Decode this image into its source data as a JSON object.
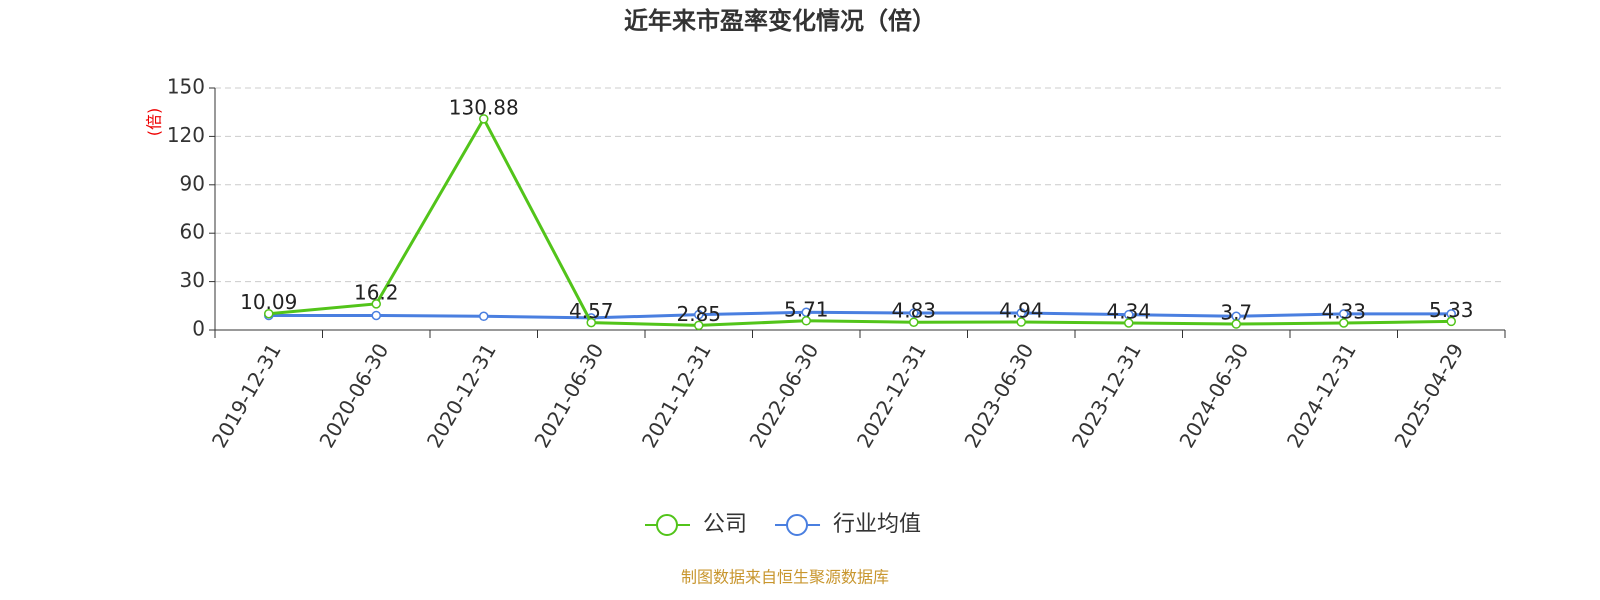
{
  "chart_data": {
    "type": "line",
    "title": "近年来市盈率变化情况（倍）",
    "y_label": "(倍)",
    "categories": [
      "2019-12-31",
      "2020-06-30",
      "2020-12-31",
      "2021-06-30",
      "2021-12-31",
      "2022-06-30",
      "2022-12-31",
      "2023-06-30",
      "2023-12-31",
      "2024-06-30",
      "2024-12-31",
      "2025-04-29"
    ],
    "series": [
      {
        "name": "公司",
        "color": "#52c41a",
        "values": [
          10.09,
          16.2,
          130.88,
          4.57,
          2.85,
          5.71,
          4.83,
          4.94,
          4.34,
          3.7,
          4.33,
          5.33
        ],
        "show_labels": true
      },
      {
        "name": "行业均值",
        "color": "#4a7fe0",
        "values": [
          9,
          9,
          8.5,
          7.5,
          9.5,
          11,
          10.5,
          10.5,
          9.5,
          8.5,
          10,
          10
        ],
        "show_labels": false
      }
    ],
    "ylim": [
      0,
      150
    ],
    "yticks": [
      0,
      30,
      60,
      90,
      120,
      150
    ],
    "grid": true,
    "legend": "bottom",
    "source": "制图数据来自恒生聚源数据库"
  }
}
